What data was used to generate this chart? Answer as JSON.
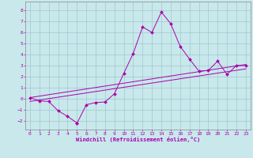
{
  "xlabel": "Windchill (Refroidissement éolien,°C)",
  "xlim": [
    -0.5,
    23.5
  ],
  "ylim": [
    -2.8,
    8.8
  ],
  "xticks": [
    0,
    1,
    2,
    3,
    4,
    5,
    6,
    7,
    8,
    9,
    10,
    11,
    12,
    13,
    14,
    15,
    16,
    17,
    18,
    19,
    20,
    21,
    22,
    23
  ],
  "yticks": [
    -2,
    -1,
    0,
    1,
    2,
    3,
    4,
    5,
    6,
    7,
    8
  ],
  "bg_color": "#c8e8ec",
  "grid_color": "#a0c8cc",
  "line_color": "#aa00aa",
  "line1_x": [
    0,
    1,
    2,
    3,
    4,
    5,
    5,
    6,
    7,
    8,
    9,
    10,
    11,
    12,
    13,
    14,
    15,
    16,
    17,
    18,
    19,
    20,
    21,
    22,
    23
  ],
  "line1_y": [
    0.1,
    -0.2,
    -0.25,
    -1.1,
    -1.6,
    -2.2,
    -2.25,
    -0.55,
    -0.35,
    -0.3,
    0.45,
    2.3,
    4.1,
    6.5,
    6.0,
    7.85,
    6.8,
    4.75,
    3.6,
    2.5,
    2.55,
    3.4,
    2.2,
    3.0,
    3.0
  ],
  "line2_x": [
    0,
    23
  ],
  "line2_y": [
    -0.25,
    2.7
  ],
  "line3_x": [
    0,
    23
  ],
  "line3_y": [
    0.1,
    3.1
  ]
}
